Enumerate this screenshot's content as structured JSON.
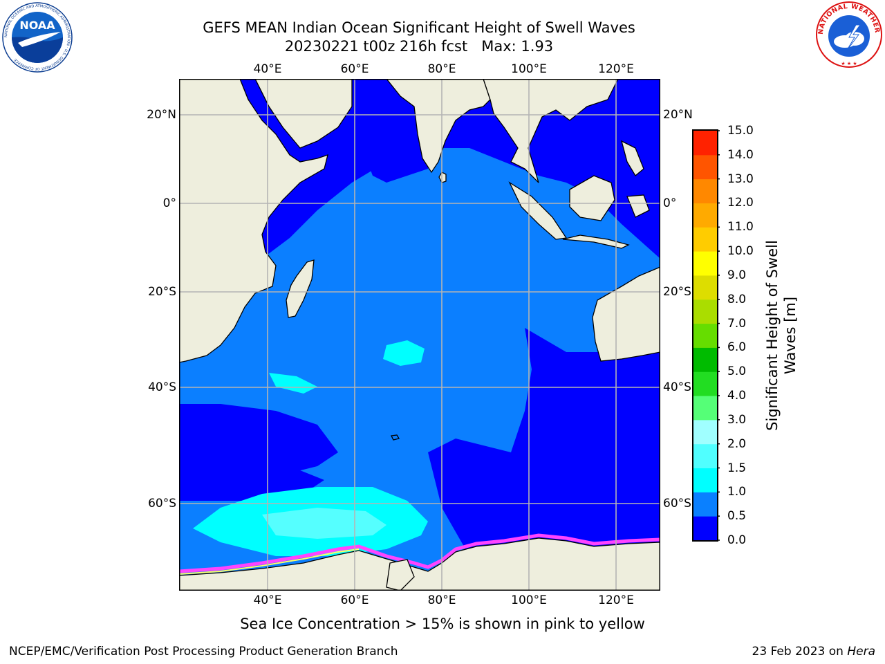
{
  "title": {
    "line1": "GEFS MEAN Indian Ocean Significant Height of Swell Waves",
    "line2": "20230221 t00z 216h fcst   Max: 1.93"
  },
  "map": {
    "lon_ticks": [
      "40°E",
      "60°E",
      "80°E",
      "100°E",
      "120°E"
    ],
    "lat_ticks": [
      "20°N",
      "0°",
      "20°S",
      "40°S",
      "60°S"
    ],
    "colors": {
      "land": "#eeeedd",
      "coast": "#000000",
      "grid": "#b4b4b4",
      "band_0_0.5": "#0000ff",
      "band_0.5_1.0": "#0b7fff",
      "band_1.0_1.5": "#00ffff",
      "band_1.5_2.0": "#55ffff",
      "sea_ice": "#ff44ff"
    }
  },
  "colorbar": {
    "label": "Significant Height of Swell Waves [m]",
    "tick_labels": [
      "0.0",
      "0.5",
      "1.0",
      "1.5",
      "2.0",
      "3.0",
      "4.0",
      "5.0",
      "6.0",
      "7.0",
      "8.0",
      "9.0",
      "10.0",
      "11.0",
      "12.0",
      "13.0",
      "14.0",
      "15.0"
    ],
    "colors": [
      "#0000ff",
      "#0a80ff",
      "#00ffff",
      "#50ffff",
      "#a0ffff",
      "#55ff77",
      "#22dd22",
      "#00bb00",
      "#66dd00",
      "#aadd00",
      "#dddd00",
      "#ffff00",
      "#ffcc00",
      "#ffaa00",
      "#ff8800",
      "#ff5500",
      "#ff2200",
      "#ff0000"
    ]
  },
  "logos": {
    "noaa": "NOAA",
    "noaa_ring": "NATIONAL OCEANIC AND ATMOSPHERIC ADMINISTRATION · U.S. DEPARTMENT OF COMMERCE",
    "nws_ring": "NATIONAL WEATHER SERVICE"
  },
  "subtitle": "Sea Ice Concentration > 15% is shown in pink to yellow",
  "footer": {
    "left": "NCEP/EMC/Verification Post Processing Product Generation Branch",
    "right_date": "23 Feb 2023 on ",
    "right_host": "Hera"
  }
}
